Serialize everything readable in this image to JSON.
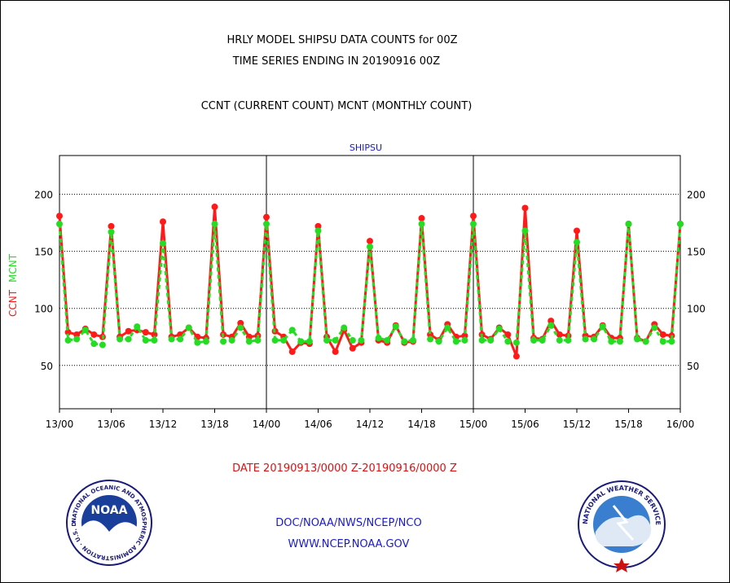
{
  "titles": {
    "line1": "HRLY MODEL SHIPSU DATA COUNTS for 00Z",
    "line2": "TIME SERIES ENDING IN 20190916 00Z",
    "line3": "CCNT (CURRENT COUNT) MCNT (MONTHLY COUNT)"
  },
  "footer": {
    "date_range": "DATE 20190913/0000 Z-20190916/0000 Z",
    "org": "DOC/NOAA/NWS/NCEP/NCO",
    "url": "WWW.NCEP.NOAA.GOV"
  },
  "logos": {
    "left": {
      "text": "NOAA",
      "ring_text": "NATIONAL OCEANIC AND ATMOSPHERIC ADMINISTRATION · U.S. DEPARTMENT OF COMMERCE"
    },
    "right": {
      "ring_text": "NATIONAL WEATHER SERVICE"
    }
  },
  "colors": {
    "ccnt": "#ff1a1a",
    "mcnt": "#22dd22",
    "title_blue": "#1a1acc",
    "date_red": "#dd1111"
  },
  "chart_data": {
    "type": "line",
    "title": "SHIPSU",
    "ylabel_parts": [
      {
        "text": "CCNT",
        "color": "#ff1a1a"
      },
      {
        "text": "MCNT",
        "color": "#22dd22"
      }
    ],
    "x_tick_labels": [
      "13/00",
      "13/06",
      "13/12",
      "13/18",
      "14/00",
      "14/06",
      "14/12",
      "14/18",
      "15/00",
      "15/06",
      "15/12",
      "15/18",
      "16/00"
    ],
    "x_tick_hours": [
      0,
      6,
      12,
      18,
      24,
      30,
      36,
      42,
      48,
      54,
      60,
      66,
      72
    ],
    "day_dividers_hours": [
      24,
      48
    ],
    "xlim": [
      0,
      72
    ],
    "ylim": [
      12,
      234
    ],
    "y_ticks": [
      50,
      100,
      150,
      200
    ],
    "grid": "horizontal dotted",
    "series": [
      {
        "name": "CCNT",
        "color": "#ff1a1a",
        "values": [
          181,
          79,
          77,
          82,
          77,
          75,
          172,
          75,
          80,
          81,
          79,
          77,
          176,
          75,
          77,
          83,
          75,
          74,
          189,
          77,
          75,
          87,
          75,
          76,
          180,
          80,
          75,
          62,
          70,
          69,
          172,
          75,
          62,
          81,
          65,
          70,
          159,
          72,
          70,
          85,
          70,
          71,
          179,
          77,
          72,
          86,
          75,
          76,
          181,
          77,
          73,
          83,
          77,
          58,
          188,
          74,
          73,
          89,
          77,
          76,
          168,
          76,
          75,
          85,
          74,
          74,
          174,
          74,
          71,
          86,
          77,
          76,
          174
        ]
      },
      {
        "name": "MCNT",
        "color": "#22dd22",
        "values": [
          174,
          72,
          73,
          81,
          69,
          68,
          167,
          73,
          73,
          84,
          72,
          72,
          157,
          73,
          73,
          83,
          70,
          71,
          174,
          71,
          72,
          83,
          71,
          72,
          174,
          72,
          72,
          81,
          71,
          71,
          168,
          72,
          72,
          83,
          72,
          72,
          154,
          74,
          72,
          84,
          71,
          72,
          174,
          73,
          71,
          83,
          71,
          72,
          174,
          72,
          72,
          82,
          71,
          70,
          168,
          72,
          72,
          85,
          72,
          72,
          158,
          73,
          73,
          84,
          71,
          71,
          174,
          73,
          71,
          83,
          71,
          71,
          174
        ]
      }
    ]
  }
}
